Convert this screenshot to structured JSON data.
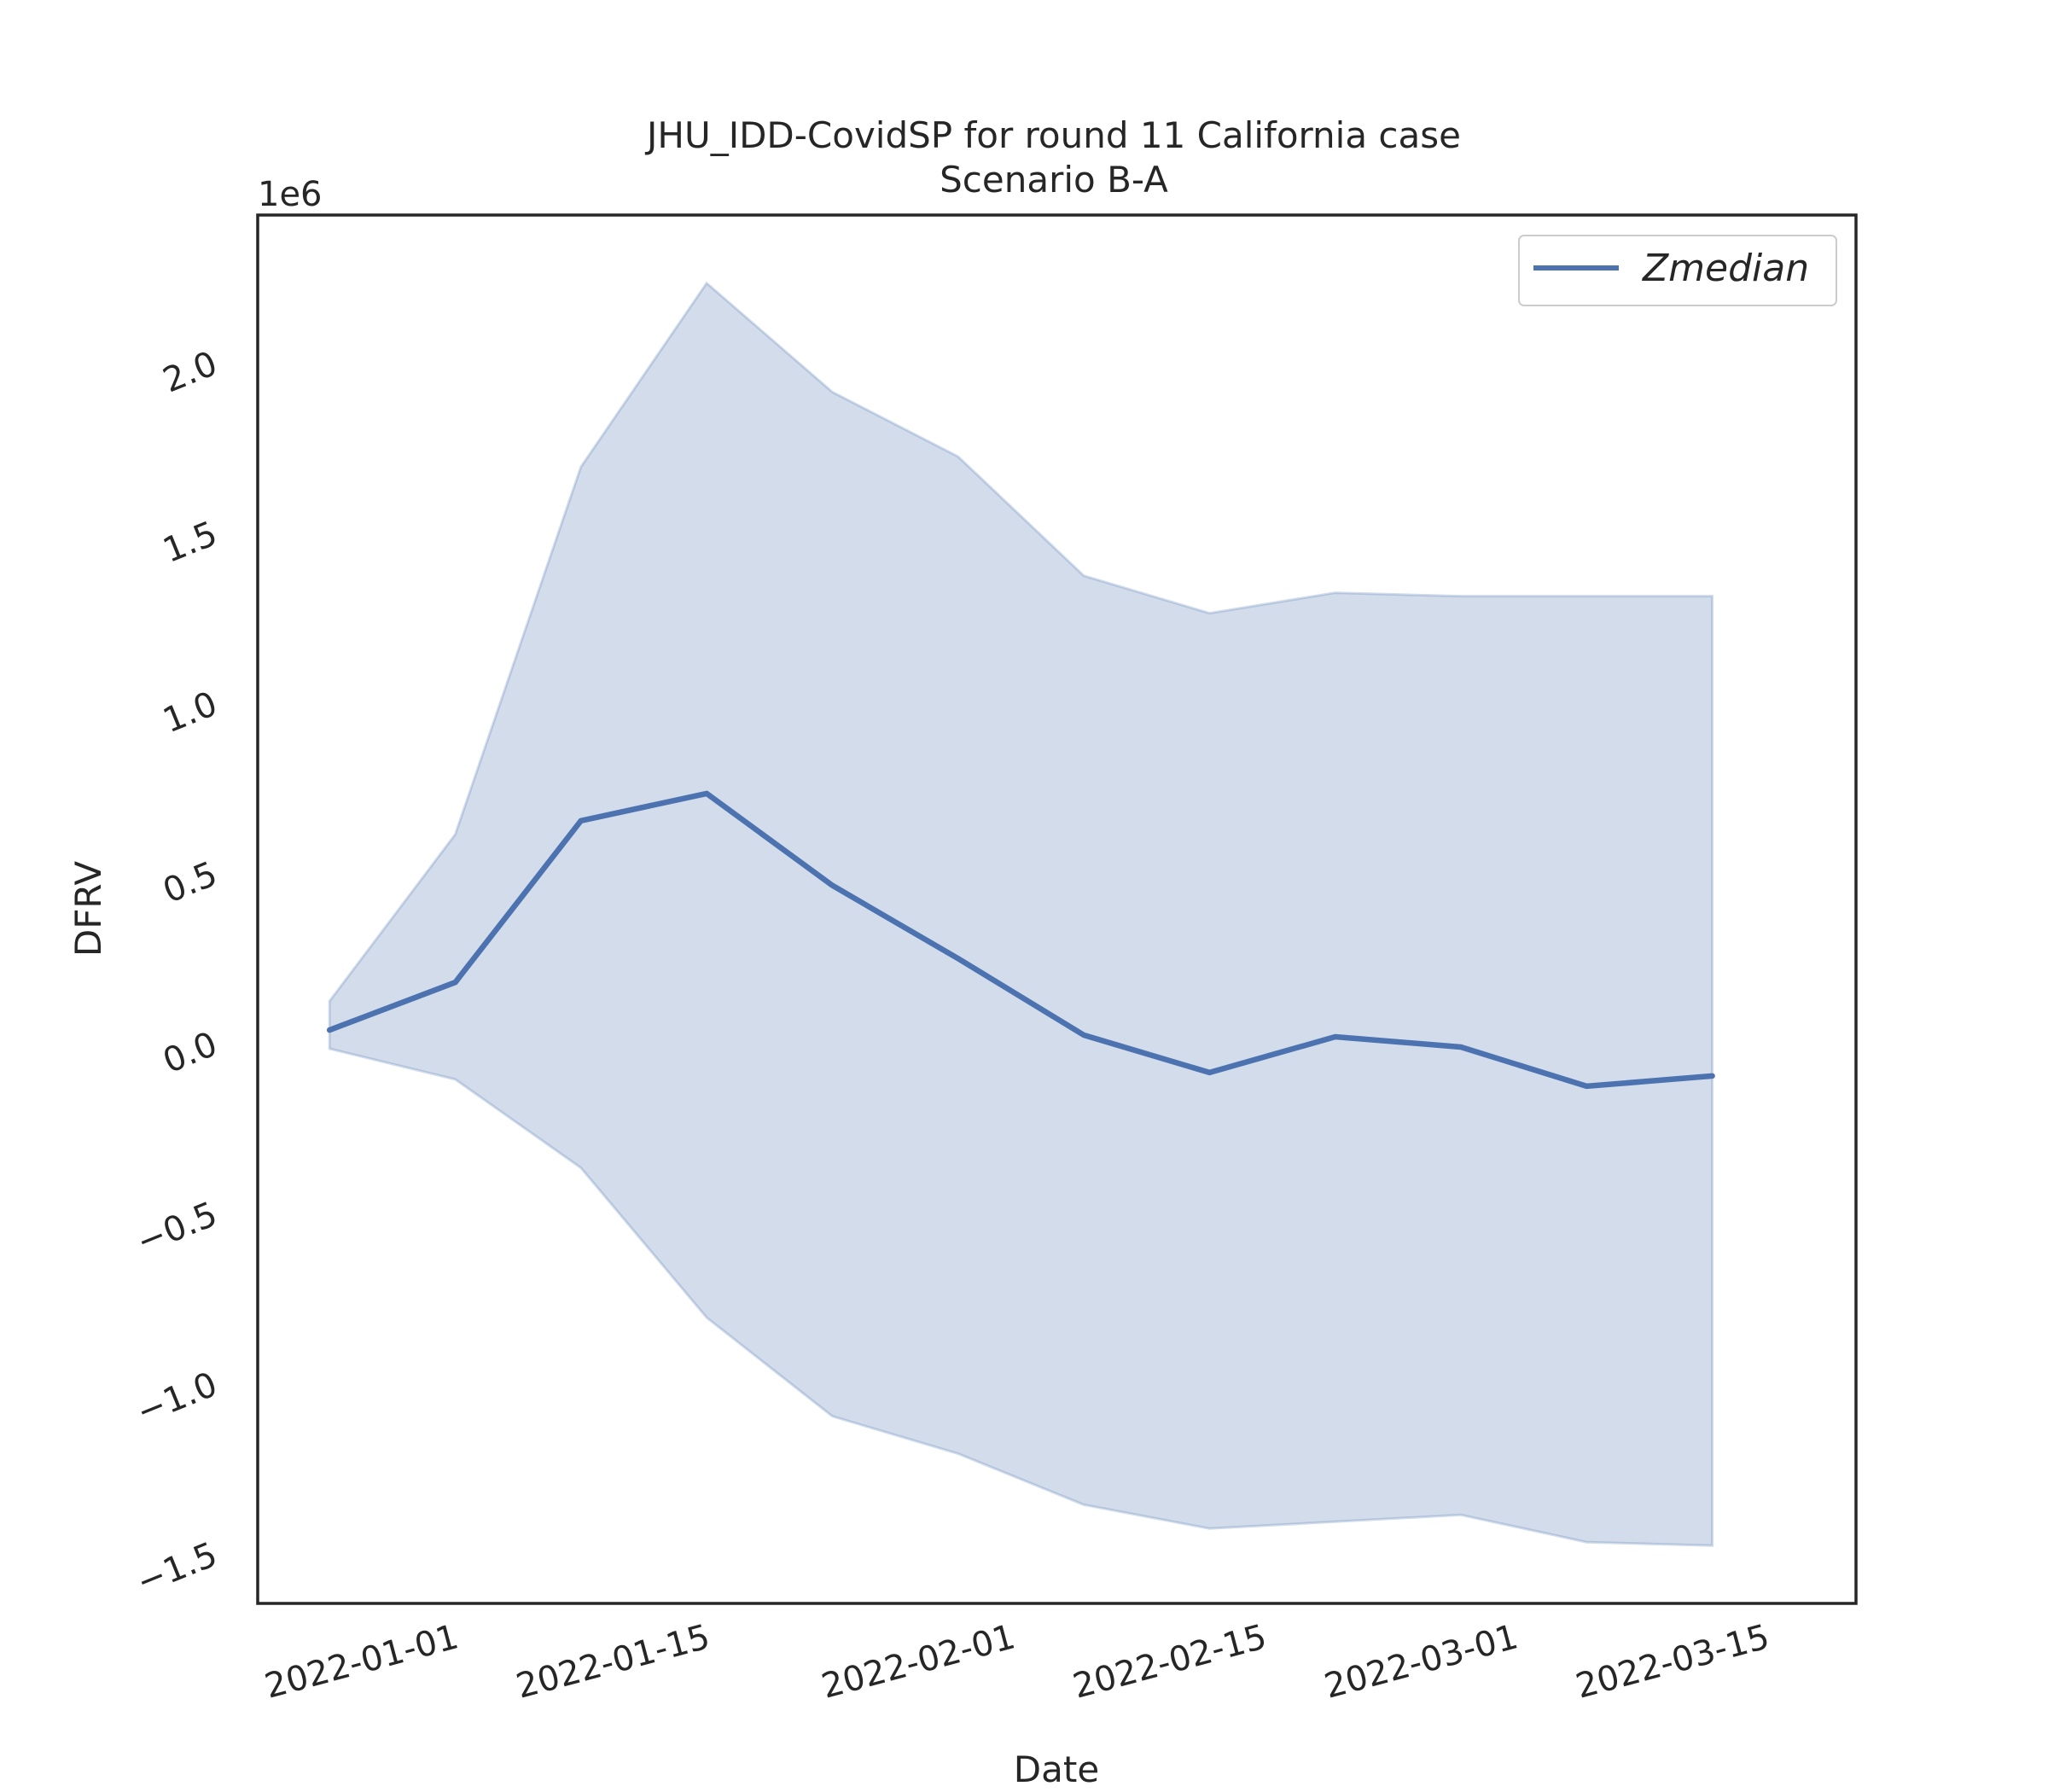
{
  "chart_data": {
    "type": "line",
    "title": "JHU_IDD-CovidSP for round 11 California case",
    "subtitle": "Scenario B-A",
    "xlabel": "Date",
    "ylabel": "DFRV",
    "y_offset_label": "1e6",
    "x_tick_labels": [
      "2022-01-01",
      "2022-01-15",
      "2022-02-01",
      "2022-02-15",
      "2022-03-01",
      "2022-03-15"
    ],
    "y_tick_labels": [
      "−1.5",
      "−1.0",
      "−0.5",
      "0.0",
      "0.5",
      "1.0",
      "1.5",
      "2.0"
    ],
    "y_ticks": [
      -1500000,
      -1000000,
      -500000,
      0,
      500000,
      1000000,
      1500000,
      2000000
    ],
    "ylim": [
      -1650000,
      2430000
    ],
    "xlim": [
      "2021-12-21",
      "2022-03-20"
    ],
    "x": [
      "2021-12-25",
      "2022-01-01",
      "2022-01-08",
      "2022-01-15",
      "2022-01-22",
      "2022-01-29",
      "2022-02-05",
      "2022-02-12",
      "2022-02-19",
      "2022-02-26",
      "2022-03-05",
      "2022-03-12"
    ],
    "series": [
      {
        "name": "Zmedian",
        "color": "#4c72b0",
        "values": [
          35000,
          175000,
          650000,
          730000,
          460000,
          245000,
          20000,
          -90000,
          15000,
          -15000,
          -130000,
          -100000
        ]
      }
    ],
    "band": {
      "color": "#4c72b0",
      "upper": [
        120000,
        610000,
        1690000,
        2230000,
        1910000,
        1720000,
        1370000,
        1260000,
        1320000,
        1310000,
        1310000,
        1310000
      ],
      "lower": [
        -20000,
        -110000,
        -370000,
        -810000,
        -1100000,
        -1210000,
        -1360000,
        -1430000,
        -1410000,
        -1390000,
        -1470000,
        -1480000
      ]
    },
    "legend": {
      "position": "top-right",
      "entries": [
        "Zmedian"
      ]
    },
    "grid": false
  }
}
